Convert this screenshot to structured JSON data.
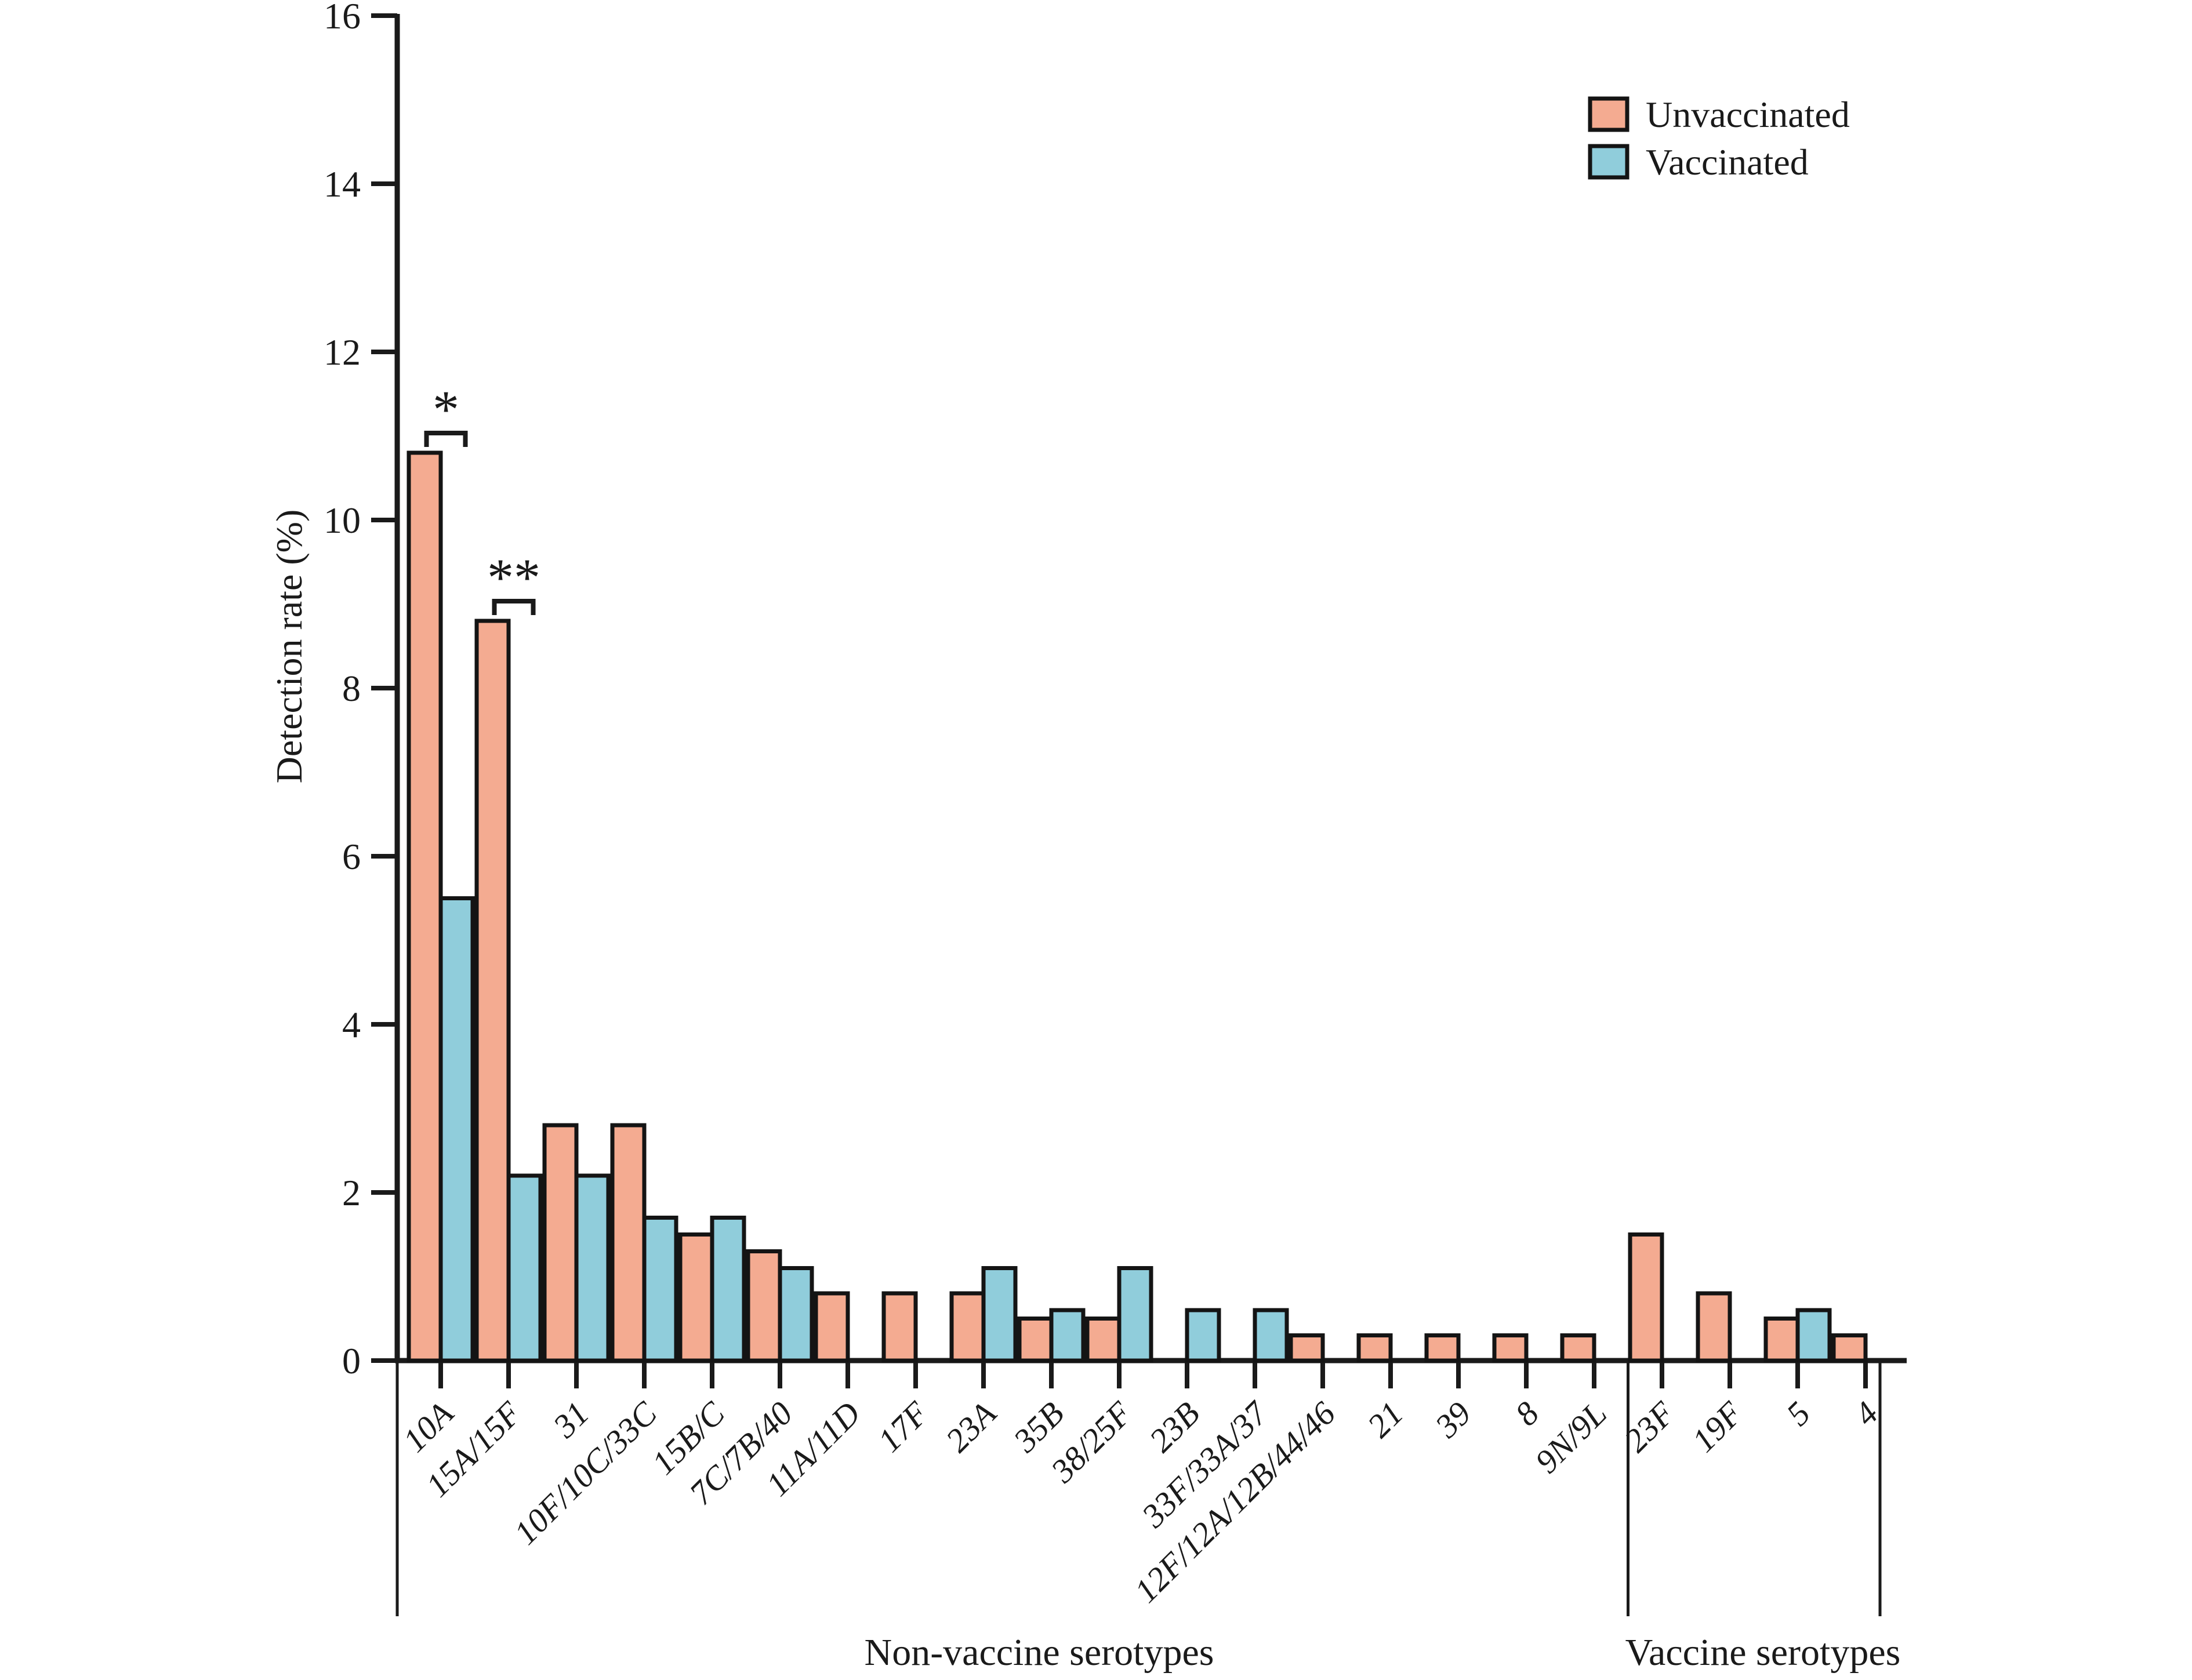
{
  "figure": {
    "y_axis_title": "Detection rate (%)",
    "x_group_left_label": "Non-vaccine serotypes",
    "x_group_right_label": "Vaccine serotypes"
  },
  "chart_data": {
    "type": "bar",
    "title": "",
    "xlabel": "",
    "ylabel": "Detection rate (%)",
    "ylim": [
      0,
      16
    ],
    "ytick_interval": 2,
    "grid": false,
    "legend_position": "top-right",
    "bar_outline_color": "#141414",
    "categories": [
      "10A",
      "15A/15F",
      "31",
      "10F/10C/33C",
      "15B/C",
      "7C/7B/40",
      "11A/11D",
      "17F",
      "23A",
      "35B",
      "38/25F",
      "23B",
      "33F/33A/37",
      "12F/12A/12B/44/46",
      "21",
      "39",
      "8",
      "9N/9L",
      "23F",
      "19F",
      "5",
      "4"
    ],
    "groups": [
      {
        "name": "Non-vaccine serotypes",
        "span": [
          0,
          17
        ]
      },
      {
        "name": "Vaccine serotypes",
        "span": [
          18,
          21
        ]
      }
    ],
    "series": [
      {
        "name": "Unvaccinated",
        "color": "#F4AB91",
        "values": [
          10.8,
          8.8,
          2.8,
          2.8,
          1.5,
          1.3,
          0.8,
          0.8,
          0.8,
          0.5,
          0.5,
          0,
          0,
          0.3,
          0.3,
          0.3,
          0.3,
          0.3,
          1.5,
          0.8,
          0.5,
          0.3
        ]
      },
      {
        "name": "Vaccinated",
        "color": "#90CDDB",
        "values": [
          5.5,
          2.2,
          2.2,
          1.7,
          1.7,
          1.1,
          0,
          0,
          1.1,
          0.6,
          1.1,
          0.6,
          0.6,
          0,
          0,
          0,
          0,
          0,
          0,
          0,
          0.6,
          0
        ]
      }
    ],
    "annotations": [
      {
        "category": "10A",
        "category_index": 0,
        "symbol": "*"
      },
      {
        "category": "15A/15F",
        "category_index": 1,
        "symbol": "**"
      }
    ]
  }
}
